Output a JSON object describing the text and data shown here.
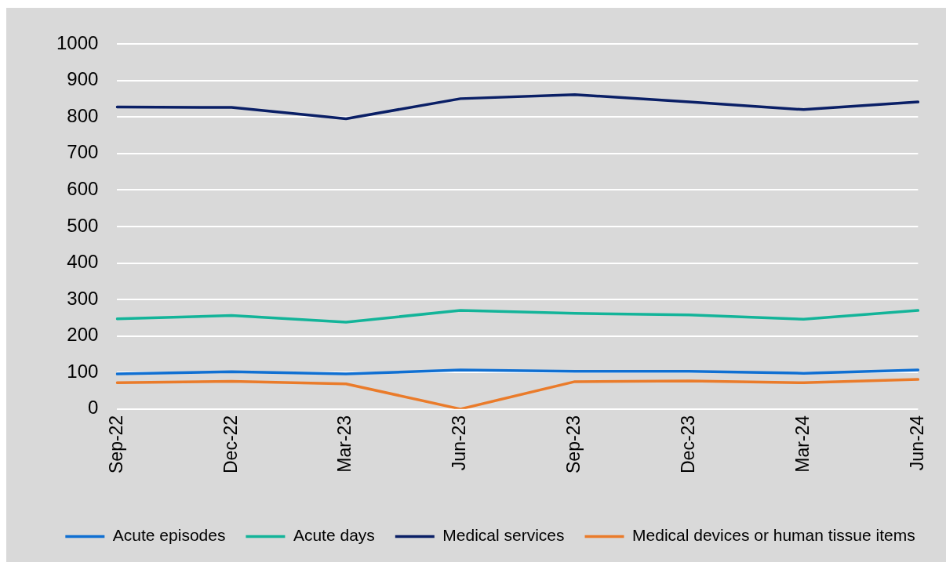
{
  "chart_data": {
    "type": "line",
    "categories": [
      "Sep-22",
      "Dec-22",
      "Mar-23",
      "Jun-23",
      "Sep-23",
      "Dec-23",
      "Mar-24",
      "Jun-24"
    ],
    "series": [
      {
        "name": "Acute episodes",
        "color": "#0f6fd2",
        "values": [
          96,
          102,
          96,
          107,
          103,
          103,
          98,
          107
        ]
      },
      {
        "name": "Acute days",
        "color": "#13b499",
        "values": [
          247,
          256,
          238,
          270,
          262,
          258,
          246,
          270
        ]
      },
      {
        "name": "Medical services",
        "color": "#0a1f66",
        "values": [
          827,
          826,
          795,
          850,
          861,
          841,
          820,
          841
        ]
      },
      {
        "name": "Medical devices or human tissue items",
        "color": "#ea7b2a",
        "values": [
          72,
          76,
          69,
          0,
          75,
          77,
          72,
          81
        ]
      }
    ],
    "ylim": [
      0,
      1000
    ],
    "yticks": [
      0,
      100,
      200,
      300,
      400,
      500,
      600,
      700,
      800,
      900,
      1000
    ],
    "grid": "y",
    "legend": "bottom",
    "marker": "none",
    "line_style": "solid"
  }
}
